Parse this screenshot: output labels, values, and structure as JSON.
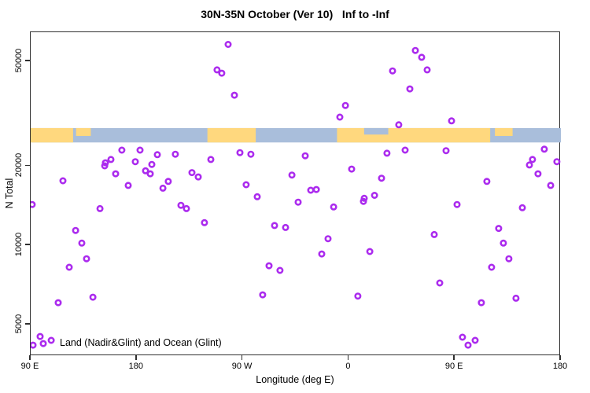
{
  "title": "30N-35N October (Ver 10)   Inf to -Inf",
  "axes": {
    "x": {
      "label": "Longitude (deg E)",
      "lim": [
        90,
        540
      ],
      "ticks": [
        {
          "value": 90,
          "label": "90 E"
        },
        {
          "value": 180,
          "label": "180"
        },
        {
          "value": 270,
          "label": "90 W"
        },
        {
          "value": 360,
          "label": "0"
        },
        {
          "value": 450,
          "label": "90 E"
        },
        {
          "value": 540,
          "label": "180"
        }
      ]
    },
    "y": {
      "label": "N Total",
      "scale": "log10",
      "lim": [
        3800,
        64500
      ],
      "ticks": [
        {
          "value": 5000,
          "label": "5000"
        },
        {
          "value": 10000,
          "label": "10000"
        },
        {
          "value": 20000,
          "label": "20000"
        },
        {
          "value": 50000,
          "label": "50000"
        }
      ]
    }
  },
  "legend": {
    "label": "Land (Nadir&Glint) and Ocean (Glint)"
  },
  "colors": {
    "marker": "#AB2BEE",
    "land": "#FFD87E",
    "ocean": "#A9BEDB",
    "axis": "#2f2f2f"
  },
  "map_band": {
    "description": "land-ocean strip for 30N-35N latitude band",
    "y_value_range": [
      24600,
      27900
    ],
    "ocean_full_range": [
      90,
      540
    ],
    "land_segments": [
      {
        "from": 90,
        "to": 126,
        "part": "full"
      },
      {
        "from": 128.5,
        "to": 141,
        "part": "top"
      },
      {
        "from": 240,
        "to": 281,
        "part": "full"
      },
      {
        "from": 350,
        "to": 480,
        "part": "full"
      },
      {
        "from": 484,
        "to": 499,
        "part": "top"
      }
    ],
    "ocean_notches": [
      {
        "from": 373,
        "to": 393.5,
        "part": "top"
      }
    ]
  },
  "chart_data": {
    "type": "scatter",
    "title": "30N-35N October (Ver 10)   Inf to -Inf",
    "xlabel": "Longitude (deg E)",
    "ylabel": "N Total",
    "xlim": [
      90,
      540
    ],
    "ylim": [
      3800,
      64500
    ],
    "yscale": "log10",
    "marker": {
      "shape": "open-circle",
      "radius": 3.2,
      "stroke_width": 2.6,
      "color": "#AB2BEE"
    },
    "points": [
      [
        257.6,
        58000
      ],
      [
        248.2,
        46400
      ],
      [
        252.2,
        45100
      ],
      [
        262.9,
        37200
      ],
      [
        167.4,
        23000
      ],
      [
        182.8,
        23000
      ],
      [
        197.5,
        22100
      ],
      [
        212.8,
        22200
      ],
      [
        267.6,
        22500
      ],
      [
        276.9,
        22200
      ],
      [
        242.9,
        21200
      ],
      [
        158.1,
        21200
      ],
      [
        153.4,
        20600
      ],
      [
        152.8,
        20050
      ],
      [
        178.8,
        20800
      ],
      [
        192.8,
        20300
      ],
      [
        187.5,
        19200
      ],
      [
        191.5,
        18700
      ],
      [
        162.1,
        18700
      ],
      [
        226.9,
        18900
      ],
      [
        232.2,
        18200
      ],
      [
        311.7,
        18500
      ],
      [
        117.4,
        17600
      ],
      [
        172.8,
        16900
      ],
      [
        202.2,
        16500
      ],
      [
        206.8,
        17500
      ],
      [
        272.9,
        17000
      ],
      [
        282.3,
        15300
      ],
      [
        416.5,
        55000
      ],
      [
        421.8,
        51800
      ],
      [
        397.1,
        46000
      ],
      [
        426.5,
        46400
      ],
      [
        411.8,
        39300
      ],
      [
        357.1,
        34000
      ],
      [
        352.4,
        30700
      ],
      [
        402.4,
        28700
      ],
      [
        447.2,
        29700
      ],
      [
        392.4,
        22400
      ],
      [
        407.8,
        23000
      ],
      [
        442.5,
        22900
      ],
      [
        323.0,
        21900
      ],
      [
        362.4,
        19500
      ],
      [
        387.8,
        18000
      ],
      [
        477.2,
        17500
      ],
      [
        513.3,
        20200
      ],
      [
        515.9,
        21200
      ],
      [
        525.9,
        23200
      ],
      [
        536.6,
        20800
      ],
      [
        520.6,
        18700
      ],
      [
        531.3,
        16900
      ],
      [
        327.7,
        16200
      ],
      [
        332.4,
        16300
      ],
      [
        381.8,
        15500
      ],
      [
        373.1,
        15100
      ],
      [
        91.3,
        14300
      ],
      [
        148.8,
        13800
      ],
      [
        128.1,
        11400
      ],
      [
        133.4,
        10200
      ],
      [
        137.4,
        8900
      ],
      [
        122.7,
        8260
      ],
      [
        113.4,
        6060
      ],
      [
        142.8,
        6360
      ],
      [
        217.5,
        14200
      ],
      [
        222.2,
        13800
      ],
      [
        237.5,
        12200
      ],
      [
        297.0,
        11900
      ],
      [
        306.3,
        11700
      ],
      [
        292.3,
        8370
      ],
      [
        301.6,
        8040
      ],
      [
        286.9,
        6490
      ],
      [
        98.0,
        4510
      ],
      [
        100.7,
        4240
      ],
      [
        107.4,
        4360
      ],
      [
        92.0,
        4180
      ],
      [
        317.0,
        14600
      ],
      [
        347.1,
        14000
      ],
      [
        372.4,
        14700
      ],
      [
        451.9,
        14300
      ],
      [
        507.3,
        13900
      ],
      [
        342.4,
        10600
      ],
      [
        432.5,
        11000
      ],
      [
        487.2,
        11600
      ],
      [
        337.0,
        9280
      ],
      [
        377.8,
        9480
      ],
      [
        491.2,
        10200
      ],
      [
        495.9,
        8900
      ],
      [
        481.2,
        8260
      ],
      [
        437.2,
        7200
      ],
      [
        367.7,
        6420
      ],
      [
        472.5,
        6060
      ],
      [
        501.9,
        6300
      ],
      [
        456.5,
        4480
      ],
      [
        461.2,
        4180
      ],
      [
        467.2,
        4360
      ]
    ]
  }
}
